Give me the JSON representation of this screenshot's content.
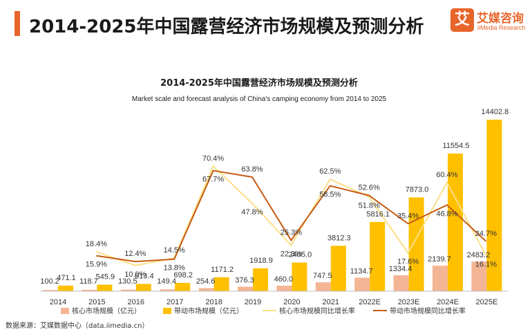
{
  "page": {
    "title": "2014-2025年中国露营经济市场规模及预测分析",
    "logo_cn": "艾媒咨询",
    "logo_en": "iiMedia Research",
    "logo_mark": "艾",
    "source": "数据来源：艾媒数据中心（data.iimedia.cn）"
  },
  "colors": {
    "accent": "#e8652a",
    "core_bar": "#f4b594",
    "driven_bar": "#ffc000",
    "core_line": "#fcdf86",
    "driven_line": "#c55a11"
  },
  "chart_data": {
    "type": "bar",
    "title": "2014-2025年中国露营经济市场规模及预测分析",
    "subtitle": "Market scale and forecast analysis of China's camping economy from 2014 to 2025",
    "categories": [
      "2014",
      "2015",
      "2016",
      "2017",
      "2018",
      "2019",
      "2020",
      "2021",
      "2022E",
      "2023E",
      "2024E",
      "2025E"
    ],
    "series": [
      {
        "name": "核心市场规模（亿元）",
        "kind": "bar",
        "values": [
          100.2,
          118.7,
          130.5,
          149.4,
          254.6,
          376.3,
          460.0,
          747.5,
          1134.7,
          1334.4,
          2139.7,
          2483.2
        ],
        "labels": [
          "100.2",
          "118.7",
          "130.5",
          "149.4",
          "254.6",
          "376.3",
          "460.0",
          "747.5",
          "1134.7",
          "1334.4",
          "2139.7",
          "2483.2"
        ]
      },
      {
        "name": "带动市场规模（亿元）",
        "kind": "bar",
        "values": [
          471.1,
          545.9,
          613.4,
          698.2,
          1171.2,
          1918.9,
          2405.0,
          3812.3,
          5816.1,
          7873.0,
          11554.5,
          14402.8
        ],
        "labels": [
          "471.1",
          "545.9",
          "613.4",
          "698.2",
          "1171.2",
          "1918.9",
          "2405.0",
          "3812.3",
          "5816.1",
          "7873.0",
          "11554.5",
          "14402.8"
        ]
      },
      {
        "name": "核心市场规模同比增长率",
        "kind": "line",
        "values": [
          null,
          18.4,
          10.0,
          14.5,
          70.4,
          47.8,
          22.3,
          62.5,
          51.8,
          17.6,
          60.4,
          16.1
        ],
        "labels": [
          "",
          "18.4%",
          "10.0%",
          "14.5%",
          "70.4%",
          "47.8%",
          "22.3%",
          "62.5%",
          "51.8%",
          "17.6%",
          "60.4%",
          "16.1%"
        ]
      },
      {
        "name": "带动市场规模同比增长率",
        "kind": "line",
        "values": [
          null,
          15.9,
          12.4,
          13.8,
          67.7,
          63.8,
          25.3,
          58.5,
          52.6,
          35.4,
          46.8,
          24.7
        ],
        "labels": [
          "",
          "15.9%",
          "12.4%",
          "13.8%",
          "67.7%",
          "63.8%",
          "25.3%",
          "58.5%",
          "52.6%",
          "35.4%",
          "46.8%",
          "24.7%"
        ]
      }
    ],
    "ylim_bars": [
      0,
      14402.8
    ],
    "ylim_lines": [
      -20,
      100
    ],
    "grid": false,
    "legend": "bottom"
  }
}
